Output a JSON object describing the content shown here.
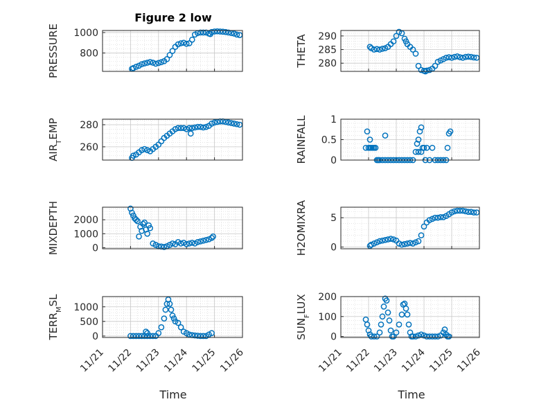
{
  "figure": {
    "title": "Figure 2 low",
    "xlabel": "Time",
    "date_ticks": [
      "11/21",
      "11/22",
      "11/23",
      "11/24",
      "11/25",
      "11/26"
    ],
    "marker_color": "#0072bd"
  },
  "chart_data": [
    {
      "type": "scatter",
      "id": "pressure",
      "ylabel_parts": [
        [
          "PRESSURE",
          ""
        ]
      ],
      "xlim": [
        "11/21",
        "11/26"
      ],
      "ylim": [
        620,
        1020
      ],
      "yticks": [
        800,
        1000
      ],
      "x_days": [
        1.05,
        1.1,
        1.2,
        1.3,
        1.4,
        1.5,
        1.6,
        1.7,
        1.8,
        1.9,
        2.0,
        2.1,
        2.2,
        2.3,
        2.4,
        2.5,
        2.6,
        2.7,
        2.8,
        2.9,
        3.0,
        3.1,
        3.2,
        3.3,
        3.4,
        3.5,
        3.6,
        3.7,
        3.8,
        3.85,
        3.9,
        4.0,
        4.1,
        4.2,
        4.3,
        4.4,
        4.5,
        4.6,
        4.7,
        4.8,
        4.9
      ],
      "y": [
        645,
        652,
        665,
        675,
        690,
        698,
        705,
        712,
        705,
        695,
        702,
        710,
        720,
        740,
        780,
        820,
        860,
        885,
        895,
        900,
        890,
        895,
        930,
        980,
        995,
        1000,
        1000,
        1000,
        990,
        985,
        1005,
        1010,
        1012,
        1010,
        1008,
        1005,
        1000,
        995,
        990,
        980,
        975
      ]
    },
    {
      "type": "scatter",
      "id": "theta",
      "ylabel_parts": [
        [
          "THETA",
          ""
        ]
      ],
      "xlim": [
        "11/21",
        "11/26"
      ],
      "ylim": [
        277,
        292
      ],
      "yticks": [
        280,
        285,
        290
      ],
      "x_days": [
        1.05,
        1.1,
        1.2,
        1.3,
        1.4,
        1.5,
        1.6,
        1.7,
        1.8,
        1.9,
        2.0,
        2.1,
        2.2,
        2.3,
        2.35,
        2.4,
        2.5,
        2.6,
        2.7,
        2.8,
        2.9,
        3.0,
        3.05,
        3.1,
        3.2,
        3.3,
        3.4,
        3.5,
        3.6,
        3.7,
        3.8,
        3.9,
        4.0,
        4.1,
        4.2,
        4.3,
        4.4,
        4.5,
        4.6,
        4.7,
        4.8,
        4.9
      ],
      "y": [
        286,
        285.5,
        285,
        285.2,
        285,
        285.3,
        285.5,
        286,
        287,
        288,
        290,
        291.5,
        291,
        289,
        288,
        287,
        286,
        285,
        283.5,
        279,
        277.5,
        277.2,
        277,
        277.3,
        277.5,
        278,
        279,
        280.5,
        281,
        281.5,
        282,
        282.2,
        282,
        282.3,
        282.5,
        282.2,
        282,
        282.3,
        282.4,
        282.3,
        282.1,
        282
      ]
    },
    {
      "type": "scatter",
      "id": "air_temp",
      "ylabel_parts": [
        [
          "AIR",
          ""
        ],
        [
          "T",
          "sub"
        ],
        [
          "EMP",
          ""
        ]
      ],
      "xlim": [
        "11/21",
        "11/26"
      ],
      "ylim": [
        248,
        285
      ],
      "yticks": [
        260,
        280
      ],
      "x_days": [
        1.05,
        1.1,
        1.2,
        1.3,
        1.4,
        1.5,
        1.6,
        1.7,
        1.8,
        1.9,
        2.0,
        2.1,
        2.2,
        2.3,
        2.4,
        2.5,
        2.6,
        2.7,
        2.8,
        2.9,
        3.0,
        3.1,
        3.15,
        3.2,
        3.3,
        3.4,
        3.5,
        3.6,
        3.7,
        3.8,
        3.9,
        4.0,
        4.1,
        4.2,
        4.3,
        4.4,
        4.5,
        4.6,
        4.7,
        4.8,
        4.9
      ],
      "y": [
        250,
        252,
        253,
        255,
        257,
        258,
        257,
        256,
        258,
        260,
        262,
        265,
        268,
        270,
        272,
        274,
        276,
        277,
        277,
        277,
        276,
        277,
        272,
        277,
        277.5,
        278,
        278,
        277.5,
        278,
        279,
        281,
        282,
        282.5,
        283,
        283,
        282.5,
        282,
        281.5,
        281,
        280.5,
        280
      ]
    },
    {
      "type": "scatter",
      "id": "rainfall",
      "ylabel_parts": [
        [
          "RAINFALL",
          ""
        ]
      ],
      "xlim": [
        "11/21",
        "11/26"
      ],
      "ylim": [
        0,
        1
      ],
      "yticks": [
        0,
        0.5,
        1
      ],
      "x_days": [
        0.9,
        0.95,
        1.0,
        1.05,
        1.1,
        1.15,
        1.2,
        1.25,
        1.3,
        1.35,
        1.4,
        1.5,
        1.6,
        1.7,
        1.8,
        1.9,
        2.0,
        2.1,
        2.2,
        2.3,
        2.4,
        2.5,
        2.6,
        2.7,
        2.8,
        2.85,
        2.9,
        2.95,
        3.0,
        3.05,
        3.1,
        3.2,
        3.3,
        3.4,
        3.5,
        3.6,
        3.7,
        3.8,
        3.85,
        3.9,
        3.95,
        1.05,
        1.6,
        2.75,
        2.8,
        2.9
      ],
      "y": [
        0.3,
        0.7,
        0.3,
        0.3,
        0.3,
        0.3,
        0.3,
        0.3,
        0,
        0,
        0,
        0,
        0,
        0,
        0,
        0,
        0,
        0,
        0,
        0,
        0,
        0,
        0,
        0.2,
        0.5,
        0.7,
        0.8,
        0.3,
        0.3,
        0,
        0.3,
        0,
        0.3,
        0,
        0,
        0,
        0,
        0,
        0.3,
        0.65,
        0.7,
        0.5,
        0.6,
        0.4,
        0.2,
        0.2
      ]
    },
    {
      "type": "scatter",
      "id": "mixdepth",
      "ylabel_parts": [
        [
          "MIXDEPTH",
          ""
        ]
      ],
      "xlim": [
        "11/21",
        "11/26"
      ],
      "ylim": [
        -80,
        2900
      ],
      "yticks": [
        0,
        1000,
        2000
      ],
      "x_days": [
        1.0,
        1.05,
        1.1,
        1.15,
        1.2,
        1.25,
        1.3,
        1.35,
        1.4,
        1.45,
        1.5,
        1.55,
        1.6,
        1.65,
        1.7,
        1.8,
        1.9,
        2.0,
        2.1,
        2.2,
        2.3,
        2.4,
        2.5,
        2.6,
        2.7,
        2.8,
        2.9,
        3.0,
        3.1,
        3.2,
        3.3,
        3.4,
        3.5,
        3.6,
        3.7,
        3.8,
        3.9,
        3.95
      ],
      "y": [
        2800,
        2500,
        2300,
        2100,
        2000,
        1900,
        800,
        1500,
        1200,
        1700,
        1800,
        1300,
        1000,
        1600,
        1400,
        300,
        200,
        100,
        80,
        50,
        100,
        200,
        300,
        250,
        400,
        300,
        350,
        250,
        300,
        350,
        300,
        400,
        450,
        500,
        550,
        600,
        700,
        800
      ]
    },
    {
      "type": "scatter",
      "id": "h2omixra",
      "ylabel_parts": [
        [
          "H2OMIXRA",
          ""
        ]
      ],
      "xlim": [
        "11/21",
        "11/26"
      ],
      "ylim": [
        -0.3,
        6.8
      ],
      "yticks": [
        0,
        5
      ],
      "x_days": [
        1.05,
        1.1,
        1.2,
        1.3,
        1.4,
        1.5,
        1.6,
        1.7,
        1.8,
        1.9,
        2.0,
        2.1,
        2.2,
        2.3,
        2.4,
        2.5,
        2.6,
        2.7,
        2.8,
        2.9,
        3.0,
        3.1,
        3.2,
        3.3,
        3.4,
        3.5,
        3.6,
        3.7,
        3.8,
        3.9,
        4.0,
        4.1,
        4.2,
        4.3,
        4.4,
        4.5,
        4.6,
        4.7,
        4.8,
        4.9
      ],
      "y": [
        0.2,
        0.4,
        0.6,
        0.8,
        1.0,
        1.1,
        1.2,
        1.3,
        1.4,
        1.3,
        1.1,
        0.6,
        0.4,
        0.5,
        0.6,
        0.7,
        0.6,
        0.8,
        1.0,
        2.0,
        3.5,
        4.2,
        4.6,
        4.8,
        5.0,
        5.0,
        5.1,
        5.1,
        5.3,
        5.6,
        5.9,
        6.1,
        6.2,
        6.2,
        6.2,
        6.1,
        6.0,
        6.0,
        5.9,
        5.9
      ]
    },
    {
      "type": "scatter",
      "id": "terr_msl",
      "ylabel_parts": [
        [
          "TERR",
          ""
        ],
        [
          "M",
          "sub"
        ],
        [
          "SL",
          ""
        ]
      ],
      "xlim": [
        "11/21",
        "11/26"
      ],
      "ylim": [
        -50,
        1350
      ],
      "yticks": [
        0,
        500,
        1000
      ],
      "x_days": [
        1.0,
        1.1,
        1.2,
        1.3,
        1.4,
        1.5,
        1.6,
        1.7,
        1.8,
        1.9,
        2.0,
        2.1,
        2.2,
        2.25,
        2.3,
        2.35,
        2.4,
        2.45,
        2.5,
        2.55,
        2.6,
        2.7,
        2.8,
        2.9,
        3.0,
        3.1,
        3.2,
        3.3,
        3.4,
        3.5,
        3.6,
        3.7,
        3.8,
        3.9,
        1.55,
        1.6
      ],
      "y": [
        0,
        0,
        0,
        0,
        0,
        0,
        0,
        0,
        0,
        0,
        100,
        300,
        600,
        900,
        1100,
        1250,
        1100,
        900,
        700,
        600,
        500,
        450,
        300,
        150,
        100,
        50,
        30,
        20,
        10,
        0,
        0,
        0,
        50,
        100,
        150,
        100
      ]
    },
    {
      "type": "scatter",
      "id": "sun_flux",
      "ylabel_parts": [
        [
          "SUN",
          ""
        ],
        [
          "F",
          "sub"
        ],
        [
          "LUX",
          ""
        ]
      ],
      "xlim": [
        "11/21",
        "11/26"
      ],
      "ylim": [
        -5,
        200
      ],
      "yticks": [
        0,
        100,
        200
      ],
      "x_days": [
        0.9,
        0.95,
        1.0,
        1.05,
        1.1,
        1.2,
        1.3,
        1.4,
        1.45,
        1.5,
        1.55,
        1.6,
        1.65,
        1.7,
        1.75,
        1.8,
        1.85,
        1.9,
        2.0,
        2.1,
        2.2,
        2.25,
        2.3,
        2.35,
        2.4,
        2.45,
        2.5,
        2.55,
        2.6,
        2.7,
        2.8,
        2.9,
        3.0,
        3.1,
        3.2,
        3.3,
        3.4,
        3.5,
        3.6,
        3.7,
        3.75,
        3.8,
        3.85,
        3.9
      ],
      "y": [
        85,
        60,
        30,
        10,
        0,
        0,
        0,
        20,
        60,
        100,
        150,
        190,
        180,
        120,
        80,
        30,
        0,
        0,
        20,
        60,
        110,
        160,
        165,
        140,
        110,
        60,
        20,
        0,
        0,
        0,
        5,
        10,
        5,
        0,
        0,
        0,
        0,
        0,
        5,
        20,
        35,
        10,
        0,
        0
      ]
    }
  ]
}
